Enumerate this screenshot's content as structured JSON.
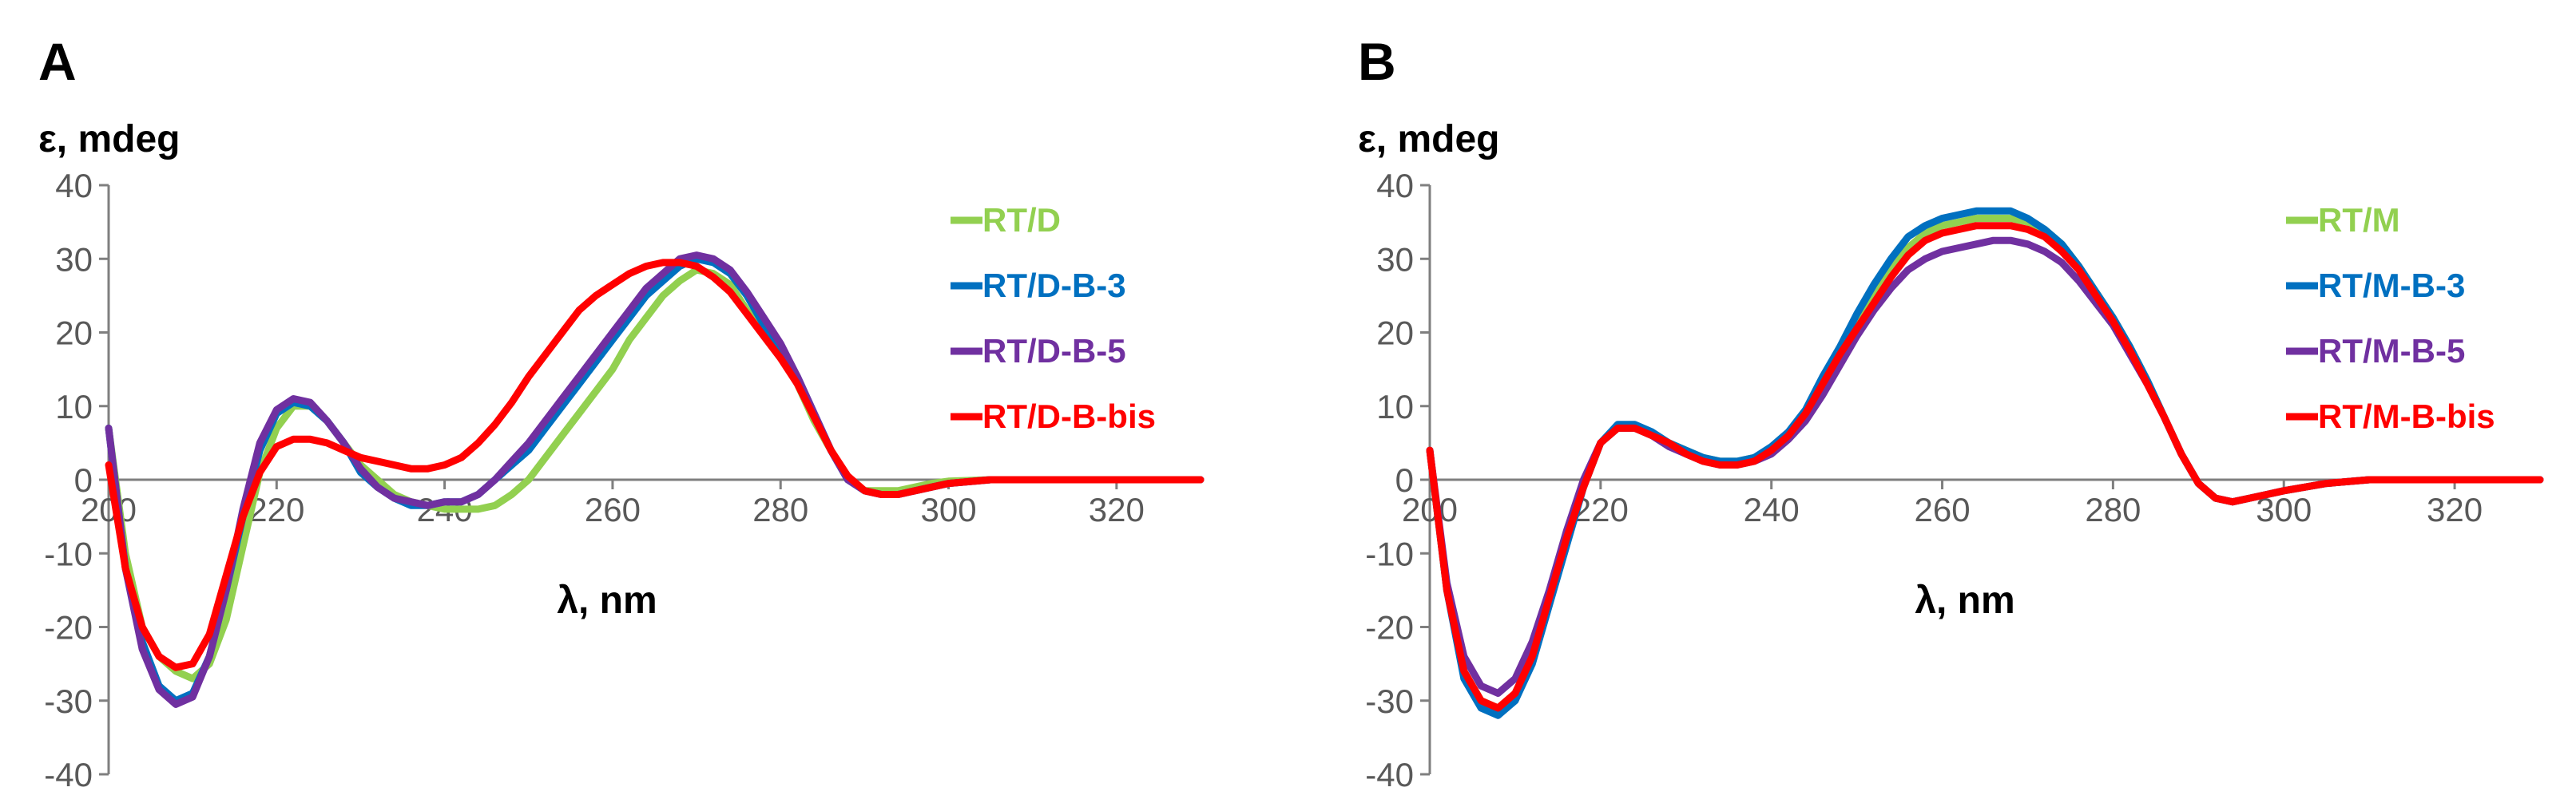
{
  "chart_data": [
    {
      "type": "line",
      "panel_label": "A",
      "ylabel": "ε, mdeg",
      "xlabel": "λ, nm",
      "xlim": [
        200,
        330
      ],
      "ylim": [
        -40,
        40
      ],
      "xticks": [
        "200",
        "220",
        "240",
        "260",
        "280",
        "300",
        "320"
      ],
      "yticks": [
        "40",
        "30",
        "20",
        "10",
        "0",
        "-10",
        "-20",
        "-30",
        "-40"
      ],
      "grid": false,
      "legend_position": "right",
      "series": [
        {
          "name": "RT/D",
          "color": "#92d050",
          "x": [
            200,
            202,
            204,
            206,
            208,
            210,
            212,
            214,
            216,
            218,
            220,
            222,
            224,
            226,
            228,
            230,
            232,
            234,
            236,
            238,
            240,
            242,
            244,
            246,
            248,
            250,
            252,
            254,
            256,
            258,
            260,
            262,
            264,
            266,
            268,
            270,
            272,
            274,
            276,
            278,
            280,
            282,
            284,
            286,
            288,
            290,
            292,
            294,
            296,
            298,
            300,
            305,
            310,
            315,
            320,
            325,
            330
          ],
          "y": [
            7,
            -10,
            -20,
            -24,
            -26,
            -27,
            -25,
            -19,
            -9,
            1,
            7,
            10,
            10,
            8,
            5,
            2,
            0,
            -2,
            -3,
            -3.5,
            -4,
            -4,
            -4,
            -3.5,
            -2,
            0,
            3,
            6,
            9,
            12,
            15,
            19,
            22,
            25,
            27,
            28.5,
            28,
            26.5,
            23,
            20,
            17,
            13,
            8,
            4,
            0,
            -1.5,
            -1.5,
            -1.5,
            -1,
            -0.5,
            -0.2,
            0,
            0,
            0,
            0,
            0,
            0
          ]
        },
        {
          "name": "RT/D-B-3",
          "color": "#0070c0",
          "x": [
            200,
            202,
            204,
            206,
            208,
            210,
            212,
            214,
            216,
            218,
            220,
            222,
            224,
            226,
            228,
            230,
            232,
            234,
            236,
            238,
            240,
            242,
            244,
            246,
            248,
            250,
            252,
            254,
            256,
            258,
            260,
            262,
            264,
            266,
            268,
            270,
            272,
            274,
            276,
            278,
            280,
            282,
            284,
            286,
            288,
            290,
            292,
            294,
            296,
            298,
            300,
            305,
            310,
            315,
            320,
            325,
            330
          ],
          "y": [
            7,
            -12,
            -22,
            -28,
            -30,
            -29,
            -24,
            -15,
            -5,
            4,
            9,
            10.5,
            10,
            8,
            5,
            1,
            -1,
            -2.5,
            -3.5,
            -3.5,
            -3,
            -3,
            -2,
            0,
            2,
            4,
            7,
            10,
            13,
            16,
            19,
            22,
            25,
            27,
            29,
            30,
            29.5,
            28,
            25,
            21,
            18,
            14,
            9,
            4,
            0,
            -1.5,
            -2,
            -2,
            -1.5,
            -1,
            -0.5,
            0,
            0,
            0,
            0,
            0,
            0
          ]
        },
        {
          "name": "RT/D-B-5",
          "color": "#7030a0",
          "x": [
            200,
            202,
            204,
            206,
            208,
            210,
            212,
            214,
            216,
            218,
            220,
            222,
            224,
            226,
            228,
            230,
            232,
            234,
            236,
            238,
            240,
            242,
            244,
            246,
            248,
            250,
            252,
            254,
            256,
            258,
            260,
            262,
            264,
            266,
            268,
            270,
            272,
            274,
            276,
            278,
            280,
            282,
            284,
            286,
            288,
            290,
            292,
            294,
            296,
            298,
            300,
            305,
            310,
            315,
            320,
            325,
            330
          ],
          "y": [
            7,
            -12,
            -23,
            -28.5,
            -30.5,
            -29.5,
            -24,
            -15,
            -4,
            5,
            9.5,
            11,
            10.5,
            8,
            5,
            1.5,
            -1,
            -2.5,
            -3,
            -3.5,
            -3,
            -3,
            -2,
            0,
            2.5,
            5,
            8,
            11,
            14,
            17,
            20,
            23,
            26,
            28,
            30,
            30.5,
            30,
            28.5,
            25.5,
            22,
            18.5,
            14,
            9,
            4,
            0,
            -1.5,
            -2,
            -2,
            -1.5,
            -1,
            -0.5,
            0,
            0,
            0,
            0,
            0,
            0
          ]
        },
        {
          "name": "RT/D-B-bis",
          "color": "#ff0000",
          "x": [
            200,
            202,
            204,
            206,
            208,
            210,
            212,
            214,
            216,
            218,
            220,
            222,
            224,
            226,
            228,
            230,
            232,
            234,
            236,
            238,
            240,
            242,
            244,
            246,
            248,
            250,
            252,
            254,
            256,
            258,
            260,
            262,
            264,
            266,
            268,
            270,
            272,
            274,
            276,
            278,
            280,
            282,
            284,
            286,
            288,
            290,
            292,
            294,
            296,
            298,
            300,
            305,
            310,
            315,
            320,
            325,
            330
          ],
          "y": [
            2,
            -12,
            -20,
            -24,
            -25.5,
            -25,
            -21,
            -13,
            -5,
            1,
            4.5,
            5.5,
            5.5,
            5,
            4,
            3,
            2.5,
            2,
            1.5,
            1.5,
            2,
            3,
            5,
            7.5,
            10.5,
            14,
            17,
            20,
            23,
            25,
            26.5,
            28,
            29,
            29.5,
            29.5,
            29,
            27.5,
            25.5,
            22.5,
            19.5,
            16.5,
            13,
            8.5,
            4,
            0.5,
            -1.5,
            -2,
            -2,
            -1.5,
            -1,
            -0.5,
            0,
            0,
            0,
            0,
            0,
            0
          ]
        }
      ]
    },
    {
      "type": "line",
      "panel_label": "B",
      "ylabel": "ε, mdeg",
      "xlabel": "λ, nm",
      "xlim": [
        200,
        330
      ],
      "ylim": [
        -40,
        40
      ],
      "xticks": [
        "200",
        "220",
        "240",
        "260",
        "280",
        "300",
        "320"
      ],
      "yticks": [
        "40",
        "30",
        "20",
        "10",
        "0",
        "-10",
        "-20",
        "-30",
        "-40"
      ],
      "grid": false,
      "legend_position": "right",
      "series": [
        {
          "name": "RT/M",
          "color": "#92d050",
          "x": [
            200,
            202,
            204,
            206,
            208,
            210,
            212,
            214,
            216,
            218,
            220,
            222,
            224,
            226,
            228,
            230,
            232,
            234,
            236,
            238,
            240,
            242,
            244,
            246,
            248,
            250,
            252,
            254,
            256,
            258,
            260,
            262,
            264,
            266,
            268,
            270,
            272,
            274,
            276,
            278,
            280,
            282,
            284,
            286,
            288,
            290,
            292,
            294,
            296,
            298,
            300,
            305,
            310,
            315,
            320,
            325,
            330
          ],
          "y": [
            4,
            -15,
            -26,
            -30,
            -31,
            -29,
            -24,
            -16,
            -8,
            -1,
            5,
            7,
            7,
            6,
            5,
            4,
            3,
            2.5,
            2.5,
            3,
            4,
            6,
            9,
            13,
            17,
            21,
            25,
            28.5,
            31.5,
            33.5,
            34.5,
            35,
            35.5,
            35.5,
            35.5,
            35,
            34,
            32,
            29,
            25.5,
            22,
            18,
            13.5,
            8.5,
            3.5,
            -0.5,
            -2.5,
            -3,
            -2.5,
            -2,
            -1.5,
            -0.5,
            0,
            0,
            0,
            0,
            0
          ]
        },
        {
          "name": "RT/M-B-3",
          "color": "#0070c0",
          "x": [
            200,
            202,
            204,
            206,
            208,
            210,
            212,
            214,
            216,
            218,
            220,
            222,
            224,
            226,
            228,
            230,
            232,
            234,
            236,
            238,
            240,
            242,
            244,
            246,
            248,
            250,
            252,
            254,
            256,
            258,
            260,
            262,
            264,
            266,
            268,
            270,
            272,
            274,
            276,
            278,
            280,
            282,
            284,
            286,
            288,
            290,
            292,
            294,
            296,
            298,
            300,
            305,
            310,
            315,
            320,
            325,
            330
          ],
          "y": [
            4,
            -15,
            -27,
            -31,
            -32,
            -30,
            -25,
            -17,
            -9,
            -1,
            5,
            7.5,
            7.5,
            6.5,
            5,
            4,
            3,
            2.5,
            2.5,
            3,
            4.5,
            6.5,
            9.5,
            14,
            18,
            22.5,
            26.5,
            30,
            33,
            34.5,
            35.5,
            36,
            36.5,
            36.5,
            36.5,
            35.5,
            34,
            32,
            29,
            25.5,
            22,
            18,
            13.5,
            8.5,
            3.5,
            -0.5,
            -2.5,
            -3,
            -2.5,
            -2,
            -1.5,
            -0.5,
            0,
            0,
            0,
            0,
            0
          ]
        },
        {
          "name": "RT/M-B-5",
          "color": "#7030a0",
          "x": [
            200,
            202,
            204,
            206,
            208,
            210,
            212,
            214,
            216,
            218,
            220,
            222,
            224,
            226,
            228,
            230,
            232,
            234,
            236,
            238,
            240,
            242,
            244,
            246,
            248,
            250,
            252,
            254,
            256,
            258,
            260,
            262,
            264,
            266,
            268,
            270,
            272,
            274,
            276,
            278,
            280,
            282,
            284,
            286,
            288,
            290,
            292,
            294,
            296,
            298,
            300,
            305,
            310,
            315,
            320,
            325,
            330
          ],
          "y": [
            4,
            -14,
            -24,
            -28,
            -29,
            -27,
            -22,
            -15,
            -7,
            0,
            5,
            7,
            7,
            6,
            4.5,
            3.5,
            2.5,
            2,
            2,
            2.5,
            3.5,
            5.5,
            8,
            11.5,
            15.5,
            19.5,
            23,
            26,
            28.5,
            30,
            31,
            31.5,
            32,
            32.5,
            32.5,
            32,
            31,
            29.5,
            27,
            24,
            21,
            17,
            13,
            8.5,
            3.5,
            -0.5,
            -2.5,
            -3,
            -2.5,
            -2,
            -1.5,
            -0.5,
            0,
            0,
            0,
            0,
            0
          ]
        },
        {
          "name": "RT/M-B-bis",
          "color": "#ff0000",
          "x": [
            200,
            202,
            204,
            206,
            208,
            210,
            212,
            214,
            216,
            218,
            220,
            222,
            224,
            226,
            228,
            230,
            232,
            234,
            236,
            238,
            240,
            242,
            244,
            246,
            248,
            250,
            252,
            254,
            256,
            258,
            260,
            262,
            264,
            266,
            268,
            270,
            272,
            274,
            276,
            278,
            280,
            282,
            284,
            286,
            288,
            290,
            292,
            294,
            296,
            298,
            300,
            305,
            310,
            315,
            320,
            325,
            330
          ],
          "y": [
            4,
            -15,
            -26,
            -30,
            -31,
            -29,
            -24,
            -16,
            -8,
            -1,
            5,
            7,
            7,
            6,
            5,
            3.5,
            2.5,
            2,
            2,
            2.5,
            4,
            6,
            9,
            13,
            17,
            20.5,
            24,
            27.5,
            30.5,
            32.5,
            33.5,
            34,
            34.5,
            34.5,
            34.5,
            34,
            33,
            31,
            28.5,
            25,
            21.5,
            17.5,
            13,
            8.5,
            3.5,
            -0.5,
            -2.5,
            -3,
            -2.5,
            -2,
            -1.5,
            -0.5,
            0,
            0,
            0,
            0,
            0
          ]
        }
      ]
    }
  ]
}
